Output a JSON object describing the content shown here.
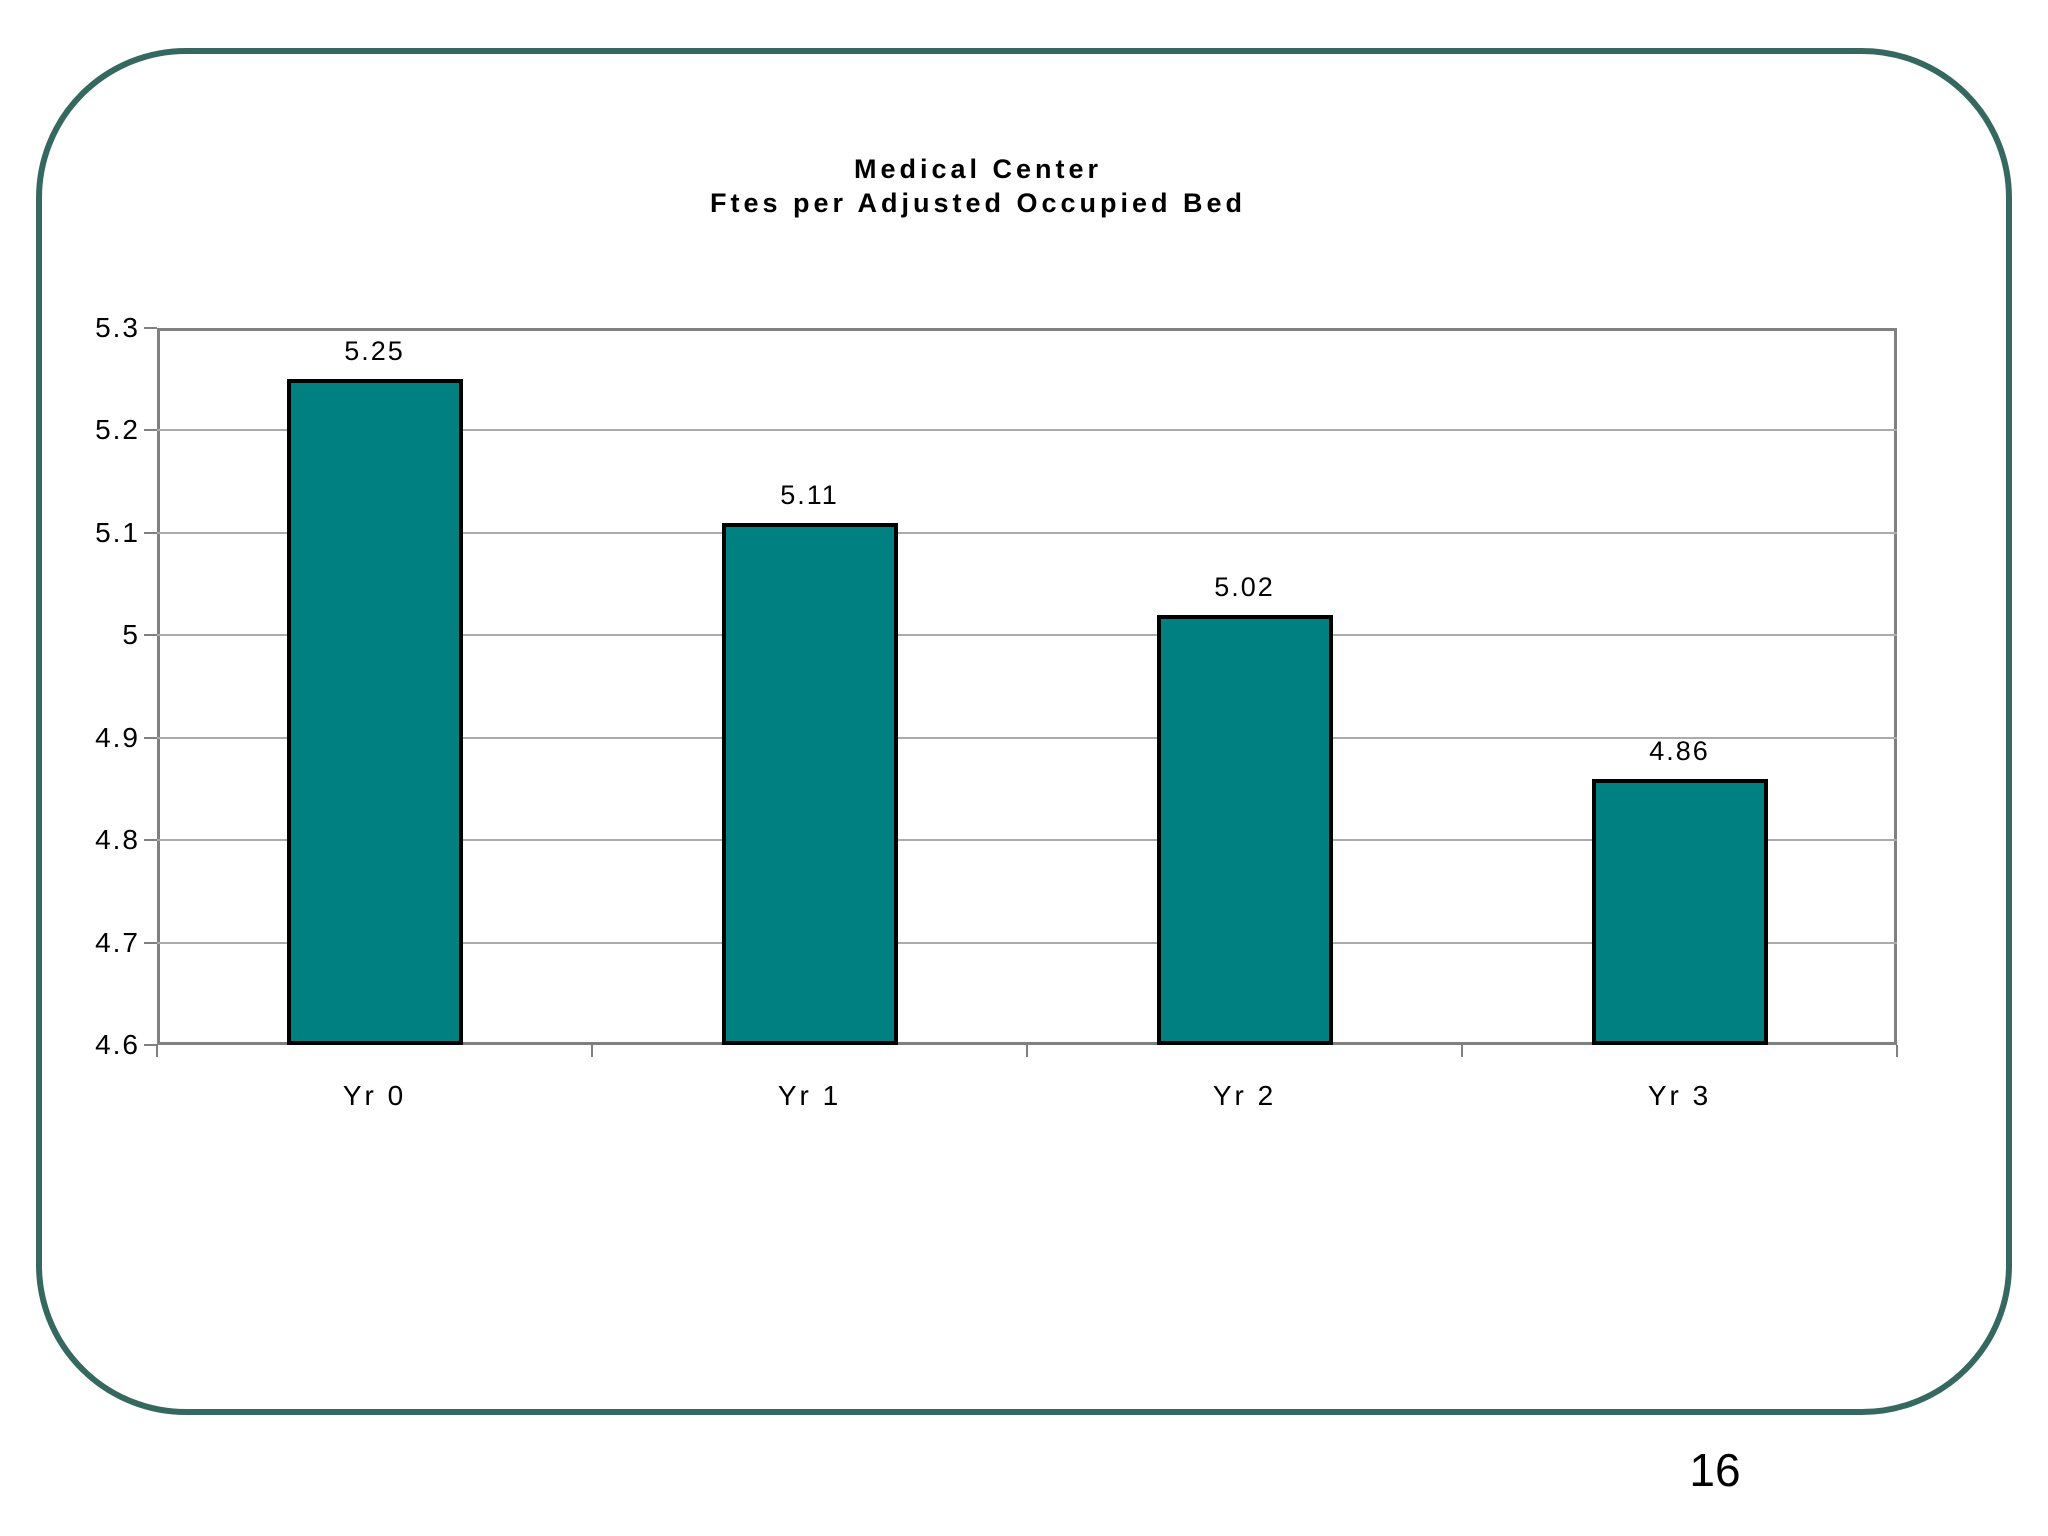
{
  "page": {
    "number": "16"
  },
  "chart_data": {
    "type": "bar",
    "title": "Medical Center Ftes per Adjusted Occupied Bed",
    "title_lines": [
      "Medical Center",
      "Ftes per Adjusted Occupied Bed"
    ],
    "categories": [
      "Yr 0",
      "Yr 1",
      "Yr 2",
      "Yr 3"
    ],
    "values": [
      5.25,
      5.11,
      5.02,
      4.86
    ],
    "data_labels": [
      "5.25",
      "5.11",
      "5.02",
      "4.86"
    ],
    "xlabel": "",
    "ylabel": "",
    "ylim": [
      4.6,
      5.3
    ],
    "yticks": [
      5.3,
      5.2,
      5.1,
      5,
      4.9,
      4.8,
      4.7,
      4.6
    ],
    "ytick_labels": [
      "5.3",
      "5.2",
      "5.1",
      "5",
      "4.9",
      "4.8",
      "4.7",
      "4.6"
    ],
    "grid": true,
    "legend": "none",
    "colors": {
      "bar_fill": "#008080",
      "bar_border": "#000000",
      "plot_border": "#808080",
      "gridline": "#ababab",
      "frame_border": "#35695f",
      "text": "#000000"
    }
  }
}
